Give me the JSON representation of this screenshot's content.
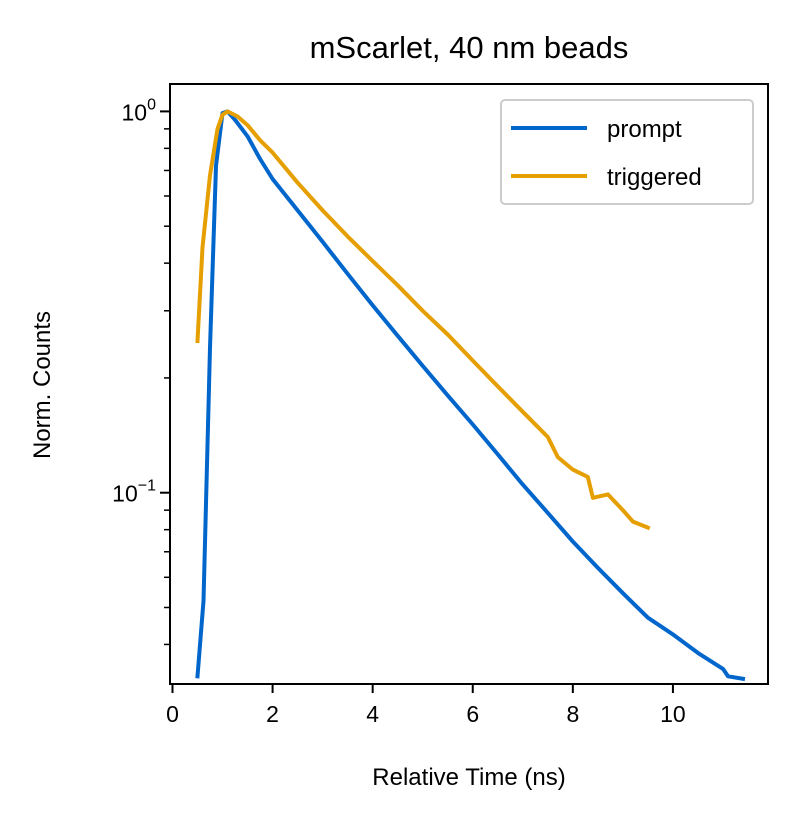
{
  "chart_data": {
    "type": "line",
    "title": "mScarlet, 40 nm beads",
    "xlabel": "Relative Time (ns)",
    "ylabel": "Norm. Counts",
    "xlim": [
      -0.05,
      11.9
    ],
    "ylim": [
      0.0315,
      1.18
    ],
    "xscale": "linear",
    "yscale": "log",
    "xticks": [
      0,
      2,
      4,
      6,
      8,
      10
    ],
    "xtick_labels": [
      "0",
      "2",
      "4",
      "6",
      "8",
      "10"
    ],
    "yticks_major": [
      {
        "value": 1.0,
        "base": "10",
        "exp": "0"
      },
      {
        "value": 0.1,
        "base": "10",
        "exp": "−1"
      }
    ],
    "yticks_minor": [
      0.04,
      0.05,
      0.06,
      0.07,
      0.08,
      0.09,
      0.2,
      0.3,
      0.4,
      0.5,
      0.6,
      0.7,
      0.8,
      0.9
    ],
    "grid": false,
    "legend": {
      "position": "top-right"
    },
    "series": [
      {
        "name": "prompt",
        "color": "#0066cc",
        "x": [
          0.5,
          0.62,
          0.75,
          0.87,
          1.0,
          1.1,
          1.25,
          1.5,
          1.75,
          2.0,
          2.5,
          3.0,
          3.5,
          4.0,
          4.5,
          5.0,
          5.5,
          6.0,
          6.5,
          7.0,
          7.5,
          8.0,
          8.5,
          9.0,
          9.5,
          10.0,
          10.5,
          11.0,
          11.1,
          11.4
        ],
        "y": [
          0.033,
          0.052,
          0.24,
          0.72,
          0.99,
          1.0,
          0.95,
          0.86,
          0.75,
          0.665,
          0.55,
          0.455,
          0.375,
          0.31,
          0.258,
          0.215,
          0.18,
          0.151,
          0.126,
          0.105,
          0.0885,
          0.0745,
          0.0635,
          0.0545,
          0.047,
          0.0425,
          0.038,
          0.0345,
          0.033,
          0.0325
        ]
      },
      {
        "name": "triggered",
        "color": "#e69f00",
        "x": [
          0.5,
          0.6,
          0.75,
          0.9,
          1.0,
          1.1,
          1.3,
          1.5,
          1.75,
          2.0,
          2.5,
          3.0,
          3.5,
          4.0,
          4.5,
          5.0,
          5.5,
          6.0,
          6.5,
          7.0,
          7.5,
          7.7,
          8.0,
          8.3,
          8.4,
          8.7,
          9.0,
          9.2,
          9.5
        ],
        "y": [
          0.25,
          0.44,
          0.68,
          0.9,
          0.98,
          1.0,
          0.97,
          0.92,
          0.84,
          0.78,
          0.65,
          0.55,
          0.47,
          0.405,
          0.35,
          0.3,
          0.26,
          0.222,
          0.19,
          0.163,
          0.14,
          0.124,
          0.115,
          0.11,
          0.097,
          0.099,
          0.09,
          0.084,
          0.081
        ]
      }
    ]
  }
}
